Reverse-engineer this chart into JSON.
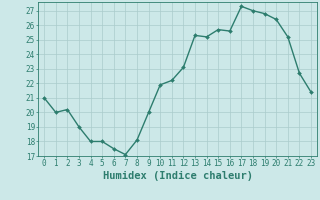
{
  "x": [
    0,
    1,
    2,
    3,
    4,
    5,
    6,
    7,
    8,
    9,
    10,
    11,
    12,
    13,
    14,
    15,
    16,
    17,
    18,
    19,
    20,
    21,
    22,
    23
  ],
  "y": [
    21.0,
    20.0,
    20.2,
    19.0,
    18.0,
    18.0,
    17.5,
    17.1,
    18.1,
    20.0,
    21.9,
    22.2,
    23.1,
    25.3,
    25.2,
    25.7,
    25.6,
    27.3,
    27.0,
    26.8,
    26.4,
    25.2,
    22.7,
    21.4
  ],
  "line_color": "#2d7d6e",
  "marker": "D",
  "marker_size": 2.0,
  "line_width": 1.0,
  "bg_color": "#cce8e8",
  "grid_color": "#aacccc",
  "xlabel": "Humidex (Indice chaleur)",
  "xlim": [
    -0.5,
    23.5
  ],
  "ylim": [
    17,
    27.6
  ],
  "yticks": [
    17,
    18,
    19,
    20,
    21,
    22,
    23,
    24,
    25,
    26,
    27
  ],
  "xticks": [
    0,
    1,
    2,
    3,
    4,
    5,
    6,
    7,
    8,
    9,
    10,
    11,
    12,
    13,
    14,
    15,
    16,
    17,
    18,
    19,
    20,
    21,
    22,
    23
  ],
  "tick_fontsize": 5.5,
  "xlabel_fontsize": 7.5,
  "axis_color": "#2d7d6e"
}
